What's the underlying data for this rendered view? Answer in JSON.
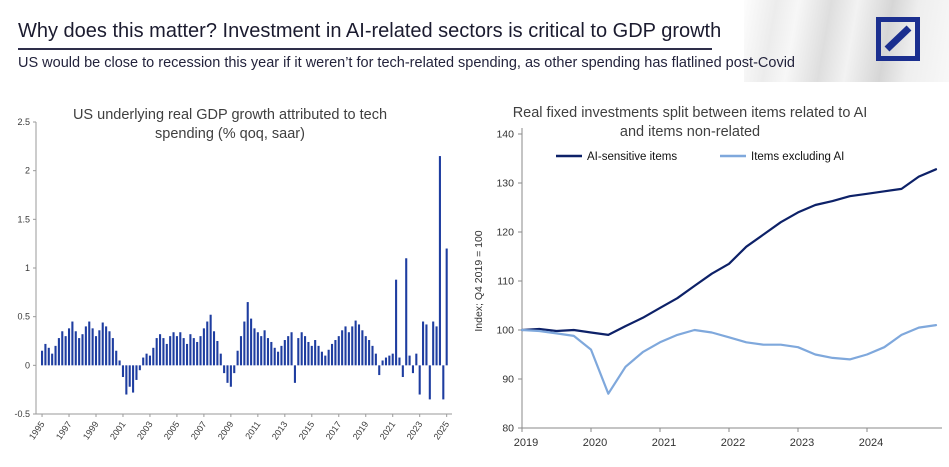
{
  "header": {
    "title": "Why does this matter? Investment in AI-related sectors is critical to GDP growth",
    "subtitle": "US would be close to recession this year if it weren’t for tech-related spending, as other spending has flatlined post-Covid"
  },
  "logo": {
    "name": "deutsche-bank-logo"
  },
  "colors": {
    "bar_blue": "#1e3da0",
    "ai_line": "#0d2168",
    "non_ai_line": "#7fa8dc",
    "logo_navy": "#1b2f8f",
    "rule": "#2e2e4a"
  },
  "chart_data": [
    {
      "type": "bar",
      "title": "US underlying real GDP growth attributed to tech spending (% qoq, saar)",
      "xlabel": "",
      "ylabel": "",
      "ylim": [
        -0.5,
        2.5
      ],
      "yticks": [
        -0.5,
        0,
        0.5,
        1,
        1.5,
        2,
        2.5
      ],
      "x_start": "1995 Q1",
      "x_freq": "quarterly",
      "xtick_labels": [
        "1995",
        "1997",
        "1999",
        "2001",
        "2003",
        "2005",
        "2007",
        "2009",
        "2011",
        "2013",
        "2015",
        "2017",
        "2019",
        "2021",
        "2023",
        "2025"
      ],
      "values": [
        0.15,
        0.22,
        0.18,
        0.12,
        0.2,
        0.28,
        0.35,
        0.3,
        0.38,
        0.45,
        0.35,
        0.28,
        0.32,
        0.4,
        0.45,
        0.38,
        0.3,
        0.36,
        0.44,
        0.4,
        0.35,
        0.28,
        0.15,
        0.05,
        -0.12,
        -0.3,
        -0.22,
        -0.28,
        -0.15,
        -0.05,
        0.08,
        0.12,
        0.1,
        0.18,
        0.28,
        0.32,
        0.28,
        0.22,
        0.3,
        0.34,
        0.3,
        0.34,
        0.28,
        0.22,
        0.32,
        0.28,
        0.24,
        0.3,
        0.38,
        0.45,
        0.52,
        0.35,
        0.25,
        0.12,
        -0.08,
        -0.18,
        -0.22,
        -0.08,
        0.15,
        0.3,
        0.45,
        0.65,
        0.48,
        0.38,
        0.34,
        0.3,
        0.36,
        0.28,
        0.24,
        0.18,
        0.14,
        0.2,
        0.26,
        0.3,
        0.34,
        -0.18,
        0.28,
        0.34,
        0.3,
        0.24,
        0.2,
        0.26,
        0.2,
        0.14,
        0.1,
        0.16,
        0.22,
        0.26,
        0.3,
        0.36,
        0.4,
        0.34,
        0.4,
        0.46,
        0.42,
        0.36,
        0.3,
        0.26,
        0.2,
        0.12,
        -0.1,
        0.05,
        0.08,
        0.1,
        0.12,
        0.88,
        0.08,
        -0.12,
        1.1,
        0.1,
        -0.08,
        0.12,
        -0.3,
        0.45,
        0.42,
        -0.35,
        0.45,
        0.4,
        2.15,
        -0.35,
        1.2
      ]
    },
    {
      "type": "line",
      "title": "Real fixed investments split between items related to AI and items non-related",
      "xlabel": "",
      "ylabel": "Index; Q4 2019 = 100",
      "ylim": [
        80,
        140
      ],
      "yticks": [
        80,
        90,
        100,
        110,
        120,
        130,
        140
      ],
      "x_freq": "quarterly",
      "xtick_labels": [
        "2019",
        "2020",
        "2021",
        "2022",
        "2023",
        "2024"
      ],
      "legend_position": "top",
      "series": [
        {
          "name": "AI-sensitive items",
          "color": "#0d2168",
          "values": [
            100,
            100.2,
            99.8,
            100,
            99.5,
            99,
            100.8,
            102.5,
            104.5,
            106.5,
            109,
            111.5,
            113.5,
            117,
            119.5,
            122,
            124,
            125.5,
            126.3,
            127.3,
            127.8,
            128.3,
            128.8,
            131.3,
            132.8
          ]
        },
        {
          "name": "Items excluding AI",
          "color": "#7fa8dc",
          "values": [
            100,
            99.8,
            99.3,
            98.8,
            96,
            87,
            92.5,
            95.5,
            97.5,
            99,
            100,
            99.5,
            98.5,
            97.5,
            97,
            97,
            96.5,
            95,
            94.3,
            94,
            95,
            96.5,
            99,
            100.5,
            101
          ]
        }
      ]
    }
  ]
}
